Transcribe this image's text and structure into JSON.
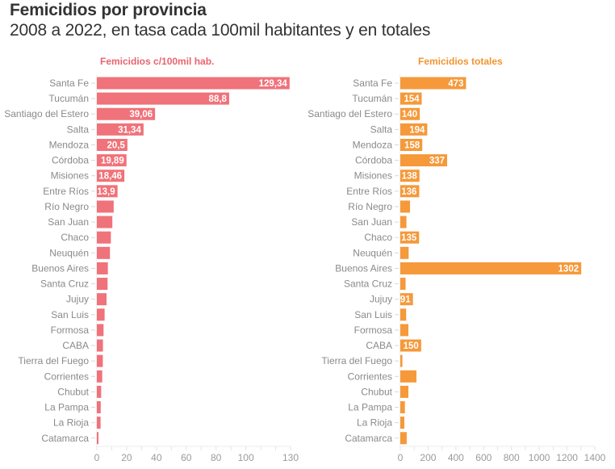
{
  "header": {
    "title": "Femicidios por provincia",
    "subtitle": "2008 a 2022, en tasa cada 100mil habitantes y en totales"
  },
  "chart_data": [
    {
      "type": "bar",
      "orientation": "horizontal",
      "title": "Femicidios c/100mil hab.",
      "color": "#f0727a",
      "title_color": "#e8646e",
      "categories": [
        "Santa Fe",
        "Tucumán",
        "Santiago del Estero",
        "Salta",
        "Mendoza",
        "Córdoba",
        "Misiones",
        "Entre Ríos",
        "Río Negro",
        "San Juan",
        "Chaco",
        "Neuquén",
        "Buenos Aires",
        "Santa Cruz",
        "Jujuy",
        "San Luis",
        "Formosa",
        "CABA",
        "Tierra del Fuego",
        "Corrientes",
        "Chubut",
        "La Pampa",
        "La Rioja",
        "Catamarca"
      ],
      "values": [
        129.34,
        88.8,
        39.06,
        31.34,
        20.5,
        19.89,
        18.46,
        13.9,
        11.3,
        10.4,
        9.4,
        8.8,
        7.4,
        7.2,
        6.5,
        5.2,
        4.5,
        4.1,
        4.0,
        3.6,
        2.9,
        2.6,
        2.5,
        1.1
      ],
      "data_labels": [
        "129,34",
        "88,8",
        "39,06",
        "31,34",
        "20,5",
        "19,89",
        "18,46",
        "13,9",
        "",
        "",
        "",
        "",
        "",
        "",
        "",
        "",
        "",
        "",
        "",
        "",
        "",
        "",
        "",
        ""
      ],
      "xlim": [
        0,
        130
      ],
      "xticks": [
        0,
        10,
        20,
        30,
        40,
        50,
        60,
        70,
        80,
        90,
        100,
        110,
        120,
        130
      ],
      "xtick_labels": [
        "0",
        "",
        "20",
        "",
        "40",
        "",
        "60",
        "",
        "80",
        "",
        "100",
        "",
        "",
        "130"
      ],
      "xlabel": "",
      "ylabel": "",
      "grid": false
    },
    {
      "type": "bar",
      "orientation": "horizontal",
      "title": "Femicidios totales",
      "color": "#f5993a",
      "title_color": "#f0952f",
      "categories": [
        "Santa Fe",
        "Tucumán",
        "Santiago del Estero",
        "Salta",
        "Mendoza",
        "Córdoba",
        "Misiones",
        "Entre Ríos",
        "Río Negro",
        "San Juan",
        "Chaco",
        "Neuquén",
        "Buenos Aires",
        "Santa Cruz",
        "Jujuy",
        "San Luis",
        "Formosa",
        "CABA",
        "Tierra del Fuego",
        "Corrientes",
        "Chubut",
        "La Pampa",
        "La Rioja",
        "Catamarca"
      ],
      "values": [
        473,
        154,
        140,
        194,
        158,
        337,
        138,
        136,
        70,
        44,
        135,
        60,
        1302,
        38,
        91,
        42,
        58,
        150,
        15,
        116,
        58,
        33,
        29,
        46
      ],
      "data_labels": [
        "473",
        "154",
        "140",
        "194",
        "158",
        "337",
        "138",
        "136",
        "",
        "",
        "135",
        "",
        "1302",
        "",
        "91",
        "",
        "",
        "150",
        "",
        "",
        "",
        "",
        "",
        ""
      ],
      "xlim": [
        0,
        1400
      ],
      "xticks": [
        0,
        100,
        200,
        300,
        400,
        500,
        600,
        700,
        800,
        900,
        1000,
        1100,
        1200,
        1300,
        1400
      ],
      "xtick_labels": [
        "0",
        "",
        "200",
        "",
        "400",
        "",
        "600",
        "",
        "800",
        "",
        "1000",
        "",
        "1200",
        "",
        "1400"
      ],
      "xlabel": "",
      "ylabel": "",
      "grid": false
    }
  ]
}
